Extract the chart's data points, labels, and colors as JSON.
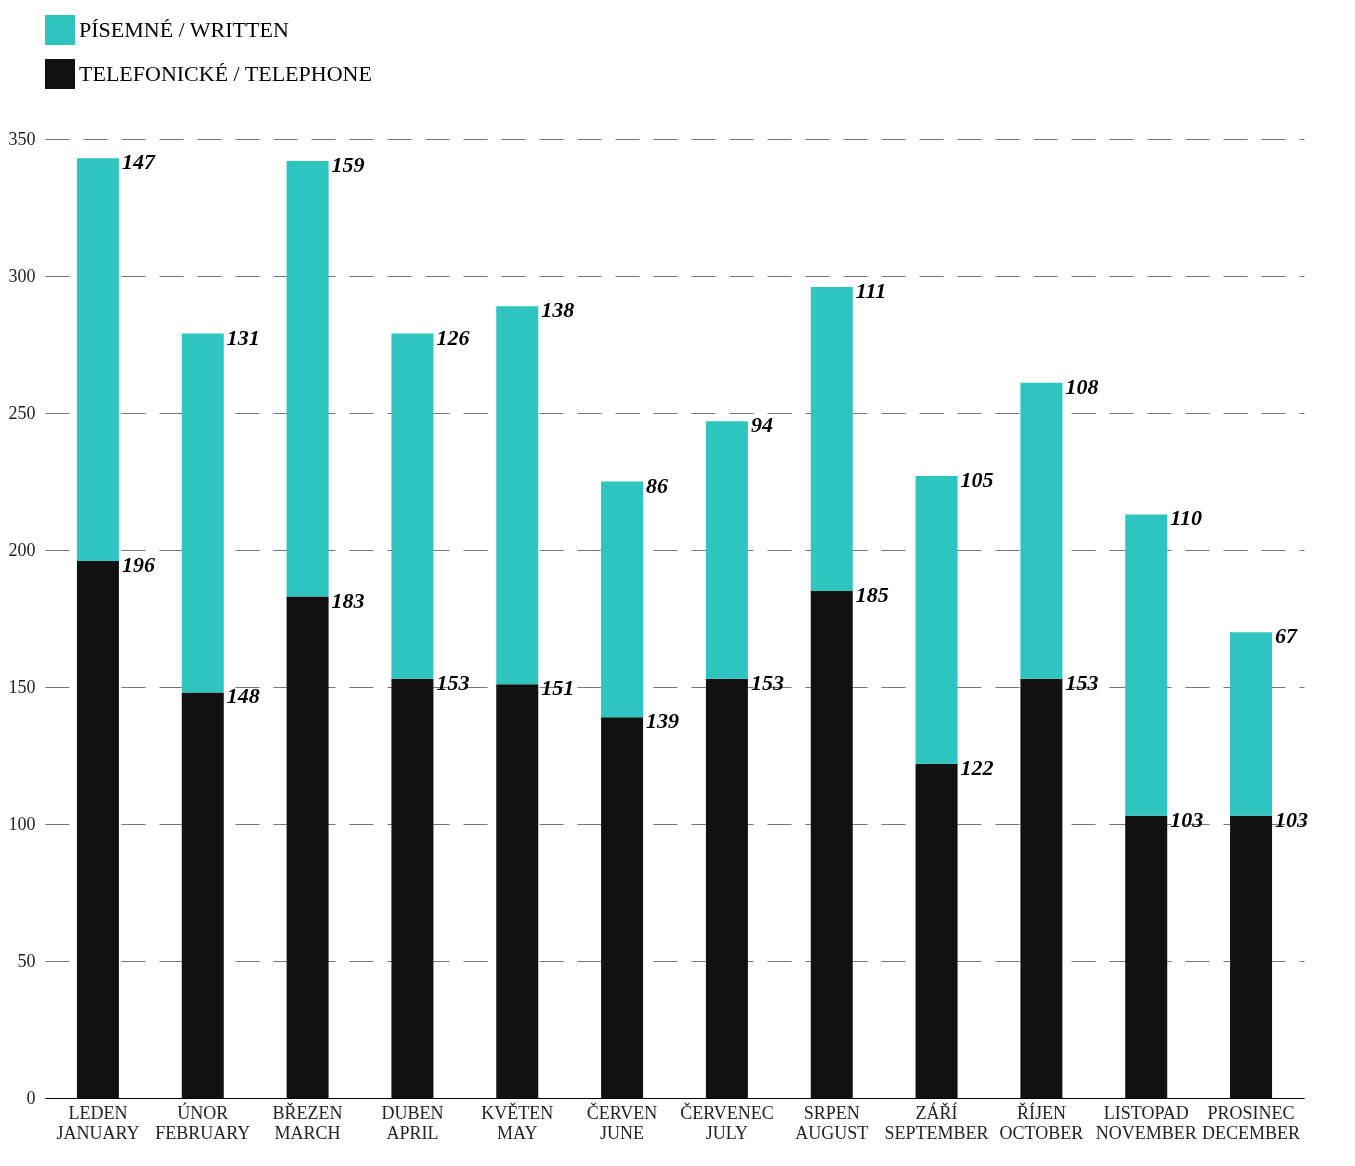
{
  "chart_data": {
    "type": "bar",
    "stacked": true,
    "categories": [
      "LEDEN\nJANUARY",
      "ÚNOR\nFEBRUARY",
      "BŘEZEN\nMARCH",
      "DUBEN\nAPRIL",
      "KVĚTEN\nMAY",
      "ČERVEN\nJUNE",
      "ČERVENEC\nJULY",
      "SRPEN\nAUGUST",
      "ZÁŘÍ\nSEPTEMBER",
      "ŘÍJEN\nOCTOBER",
      "LISTOPAD\nNOVEMBER",
      "PROSINEC\nDECEMBER"
    ],
    "series": [
      {
        "name": "TELEFONICKÉ / TELEPHONE",
        "color": "#111111",
        "values": [
          196,
          148,
          183,
          153,
          151,
          139,
          153,
          185,
          122,
          153,
          103,
          103
        ]
      },
      {
        "name": "PÍSEMNÉ / WRITTEN",
        "color": "#2ec4c0",
        "values": [
          147,
          131,
          159,
          126,
          138,
          86,
          94,
          111,
          105,
          108,
          110,
          67
        ]
      }
    ],
    "ylim": [
      0,
      350
    ],
    "yticks": [
      0,
      50,
      100,
      150,
      200,
      250,
      300,
      350
    ],
    "grid": "y",
    "data_labels": true,
    "legend": "top left"
  }
}
